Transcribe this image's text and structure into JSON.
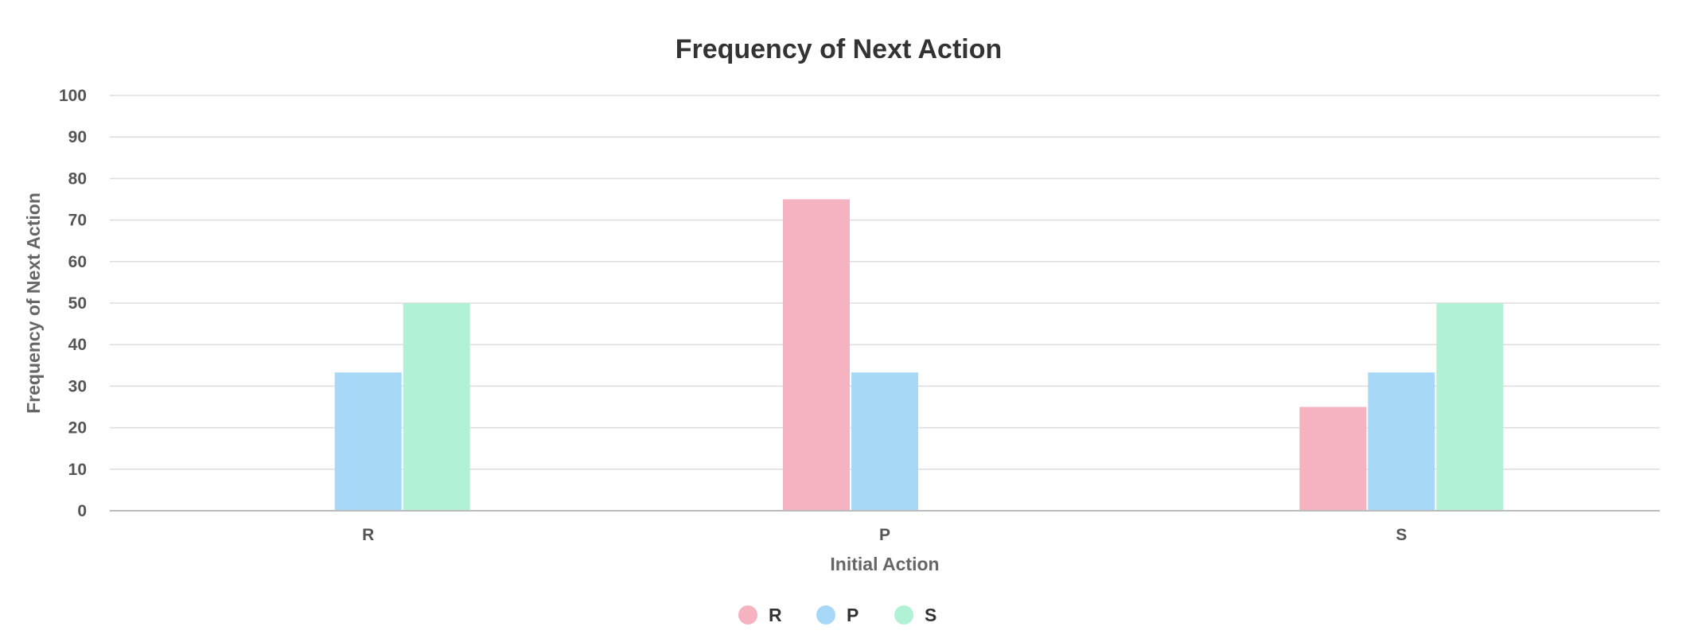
{
  "chart_data": {
    "type": "bar",
    "title": "Frequency of Next Action",
    "xlabel": "Initial Action",
    "ylabel": "Frequency of Next Action",
    "categories": [
      "R",
      "P",
      "S"
    ],
    "series": [
      {
        "name": "R",
        "color": "#f5b3c2",
        "values": [
          0,
          75,
          25
        ]
      },
      {
        "name": "P",
        "color": "#a8d8f8",
        "values": [
          33.3,
          33.3,
          33.3
        ]
      },
      {
        "name": "S",
        "color": "#b1f2d7",
        "values": [
          50,
          0,
          50
        ]
      }
    ],
    "ylim": [
      0,
      100
    ],
    "yticks": [
      "0",
      "10",
      "20",
      "30",
      "40",
      "50",
      "60",
      "70",
      "80",
      "90",
      "100"
    ],
    "grid": true,
    "legend_position": "bottom-center"
  }
}
